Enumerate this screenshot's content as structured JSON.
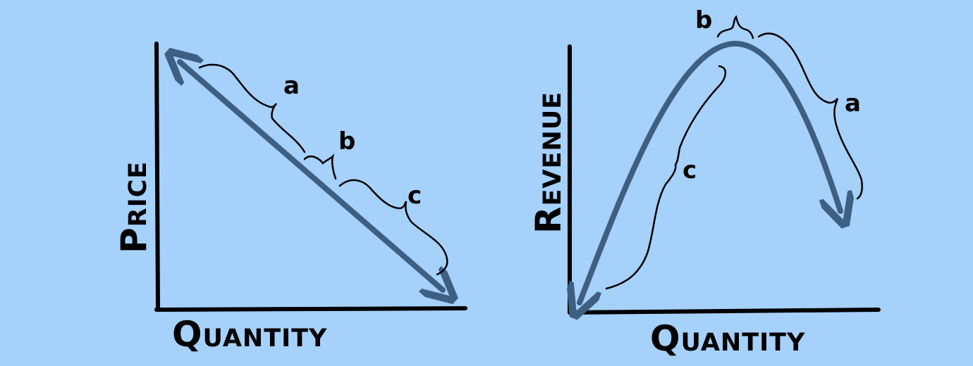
{
  "colors": {
    "background": "#a6d1fb",
    "curve": "#3d5f82",
    "ink": "#000000"
  },
  "left_chart": {
    "y_label": "Price",
    "x_label": "Quantity",
    "segments": [
      "a",
      "b",
      "c"
    ]
  },
  "right_chart": {
    "y_label": "Revenue",
    "x_label": "Quantity",
    "segments": [
      "a",
      "b",
      "c"
    ]
  }
}
